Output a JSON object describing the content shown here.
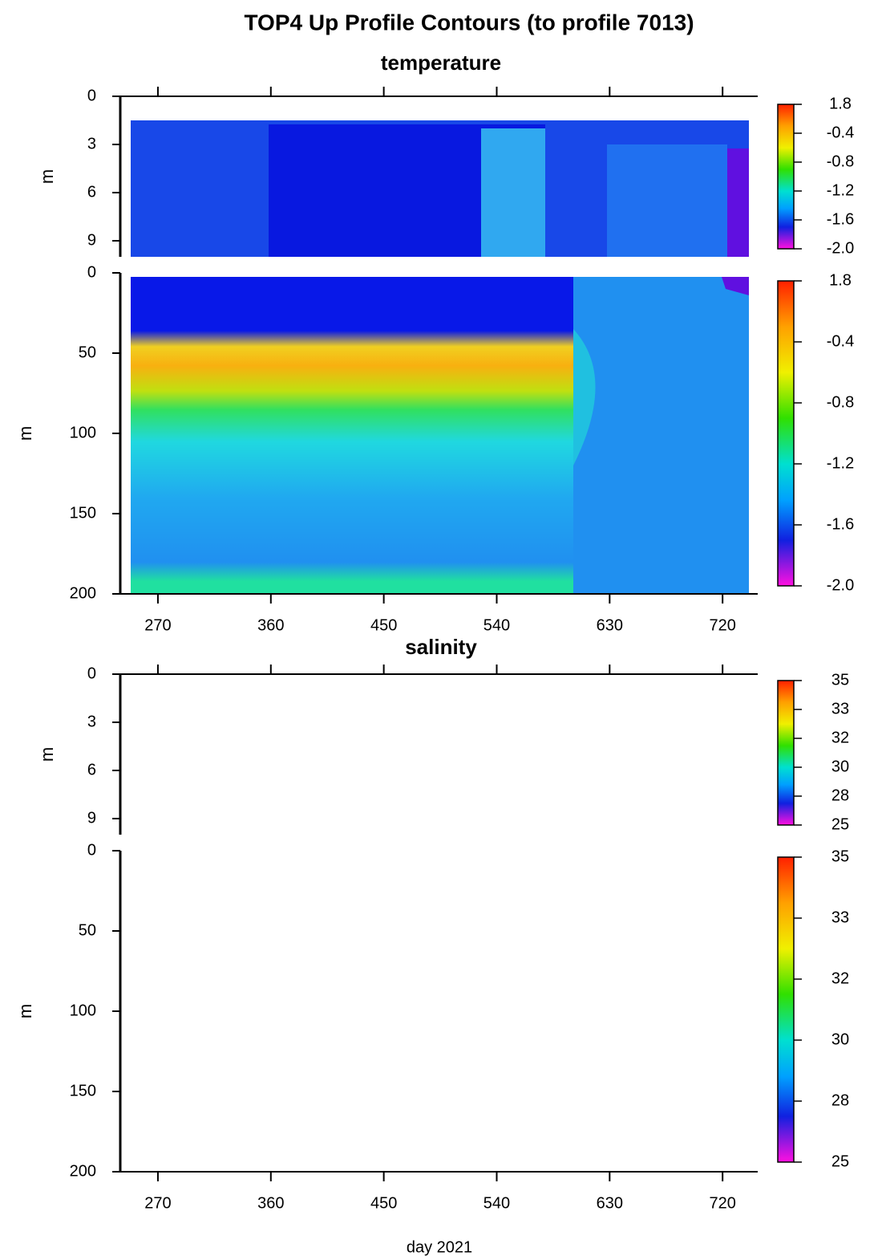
{
  "title": "TOP4 Up Profile Contours (to profile 7013)",
  "xaxis": {
    "label": "day 2021",
    "lim": [
      240,
      748
    ],
    "ticks": [
      270,
      360,
      450,
      540,
      630,
      720
    ]
  },
  "chart_data": [
    {
      "type": "heatmap",
      "subtitle": "temperature",
      "y_label": "m",
      "ylim": [
        0,
        10
      ],
      "yticks": [
        0,
        3,
        6,
        9
      ],
      "colorbar": [
        "1.8",
        "-0.4",
        "-0.8",
        "-1.2",
        "-1.6",
        "-2.0"
      ]
    },
    {
      "type": "heatmap",
      "y_label": "m",
      "ylim": [
        0,
        200
      ],
      "yticks": [
        0,
        50,
        100,
        150,
        200
      ],
      "colorbar": [
        "1.8",
        "-0.4",
        "-0.8",
        "-1.2",
        "-1.6",
        "-2.0"
      ]
    },
    {
      "type": "heatmap",
      "subtitle": "salinity",
      "y_label": "m",
      "ylim": [
        0,
        10
      ],
      "yticks": [
        0,
        3,
        6,
        9
      ],
      "colorbar": [
        "35",
        "33",
        "32",
        "30",
        "28",
        "25"
      ]
    },
    {
      "type": "heatmap",
      "y_label": "m",
      "ylim": [
        0,
        200
      ],
      "yticks": [
        0,
        50,
        100,
        150,
        200
      ],
      "colorbar": [
        "35",
        "33",
        "32",
        "30",
        "28",
        "25"
      ]
    }
  ]
}
